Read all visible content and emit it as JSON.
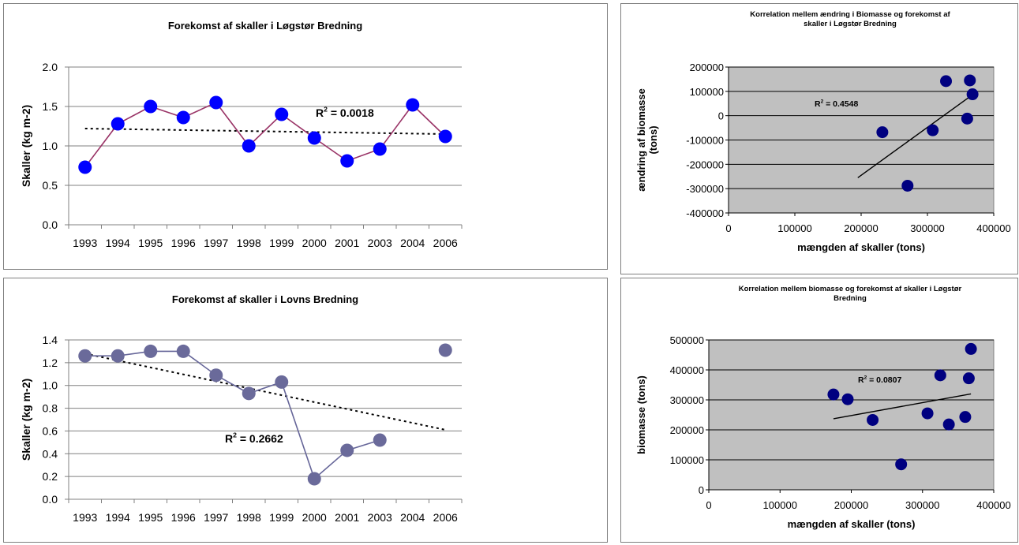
{
  "charts": [
    {
      "id": "p1",
      "type": "line",
      "title": "Forekomst af skaller i Løgstør  Bredning",
      "ylabel": "Skaller  (kg m-2)",
      "categories": [
        "1993",
        "1994",
        "1995",
        "1996",
        "1997",
        "1998",
        "1999",
        "2000",
        "2001",
        "2003",
        "2004",
        "2006"
      ],
      "values": [
        0.73,
        1.28,
        1.5,
        1.36,
        1.55,
        1.0,
        1.4,
        1.1,
        0.81,
        0.96,
        1.52,
        1.12
      ],
      "ylim": [
        0,
        2.0
      ],
      "yticks": [
        0.0,
        0.5,
        1.0,
        1.5,
        2.0
      ],
      "tickDecimals": 1,
      "trend": [
        1.22,
        1.15
      ],
      "r2": {
        "base": "R",
        "sup": "2",
        "value": " = 0.0018"
      },
      "line_color": "#993366",
      "marker_color": "#0000ff",
      "connect": true
    },
    {
      "id": "p2",
      "type": "line",
      "title": "Forekomst af skaller i  Lovns Bredning",
      "ylabel": "Skaller  (kg m-2)",
      "categories": [
        "1993",
        "1994",
        "1995",
        "1996",
        "1997",
        "1998",
        "1999",
        "2000",
        "2001",
        "2003",
        "2004",
        "2006"
      ],
      "values": [
        1.26,
        1.26,
        1.3,
        1.3,
        1.09,
        0.93,
        1.03,
        0.18,
        0.43,
        0.52,
        null,
        1.31
      ],
      "ylim": [
        0,
        1.4
      ],
      "yticks": [
        0.0,
        0.2,
        0.4,
        0.6,
        0.8,
        1.0,
        1.2,
        1.4
      ],
      "tickDecimals": 1,
      "trend": [
        1.28,
        0.61
      ],
      "r2": {
        "base": "R",
        "sup": "2",
        "value": " = 0.2662"
      },
      "line_color": "#666699",
      "marker_color": "#6a6a9a",
      "connect": true
    },
    {
      "id": "p3",
      "type": "scatter",
      "title_lines": [
        "Korrelation mellem ændring i Biomasse og forekomst af",
        "skaller i Løgstør Bredning"
      ],
      "ylabel_lines": [
        "ændring af biomasse",
        "(tons)"
      ],
      "xlabel": "mængden af skaller (tons)",
      "xlim": [
        0,
        400000
      ],
      "xticks": [
        0,
        100000,
        200000,
        300000,
        400000
      ],
      "ylim": [
        -400000,
        200000
      ],
      "yticks": [
        -400000,
        -300000,
        -200000,
        -100000,
        0,
        100000,
        200000
      ],
      "x": [
        232000,
        270000,
        308000,
        328000,
        360000,
        364000,
        368000
      ],
      "y": [
        -68000,
        -288000,
        -60000,
        142000,
        -12000,
        145000,
        88000
      ],
      "trend_x": [
        195000,
        370000
      ],
      "trend_y": [
        -255000,
        90000
      ],
      "r2": {
        "base": "R",
        "sup": "2",
        "value": " = 0.4548"
      },
      "marker_color": "#000080",
      "plot_bg": "#c0c0c0"
    },
    {
      "id": "p4",
      "type": "scatter",
      "title_lines": [
        "Korrelation mellem  biomasse og forekomst af skaller i Løgstør",
        "Bredning"
      ],
      "ylabel_lines": [
        "biomasse (tons)"
      ],
      "xlabel": "mængden af skaller (tons)",
      "xlim": [
        0,
        400000
      ],
      "xticks": [
        0,
        100000,
        200000,
        300000,
        400000
      ],
      "ylim": [
        0,
        500000
      ],
      "yticks": [
        0,
        100000,
        200000,
        300000,
        400000,
        500000
      ],
      "x": [
        175000,
        195000,
        230000,
        270000,
        307000,
        325000,
        337000,
        360000,
        365000,
        368000
      ],
      "y": [
        318000,
        302000,
        233000,
        85000,
        255000,
        382000,
        218000,
        243000,
        372000,
        470000
      ],
      "trend_x": [
        175000,
        368000
      ],
      "trend_y": [
        237000,
        320000
      ],
      "r2": {
        "base": "R",
        "sup": "2",
        "value": " = 0.0807"
      },
      "marker_color": "#000080",
      "plot_bg": "#c0c0c0"
    }
  ]
}
